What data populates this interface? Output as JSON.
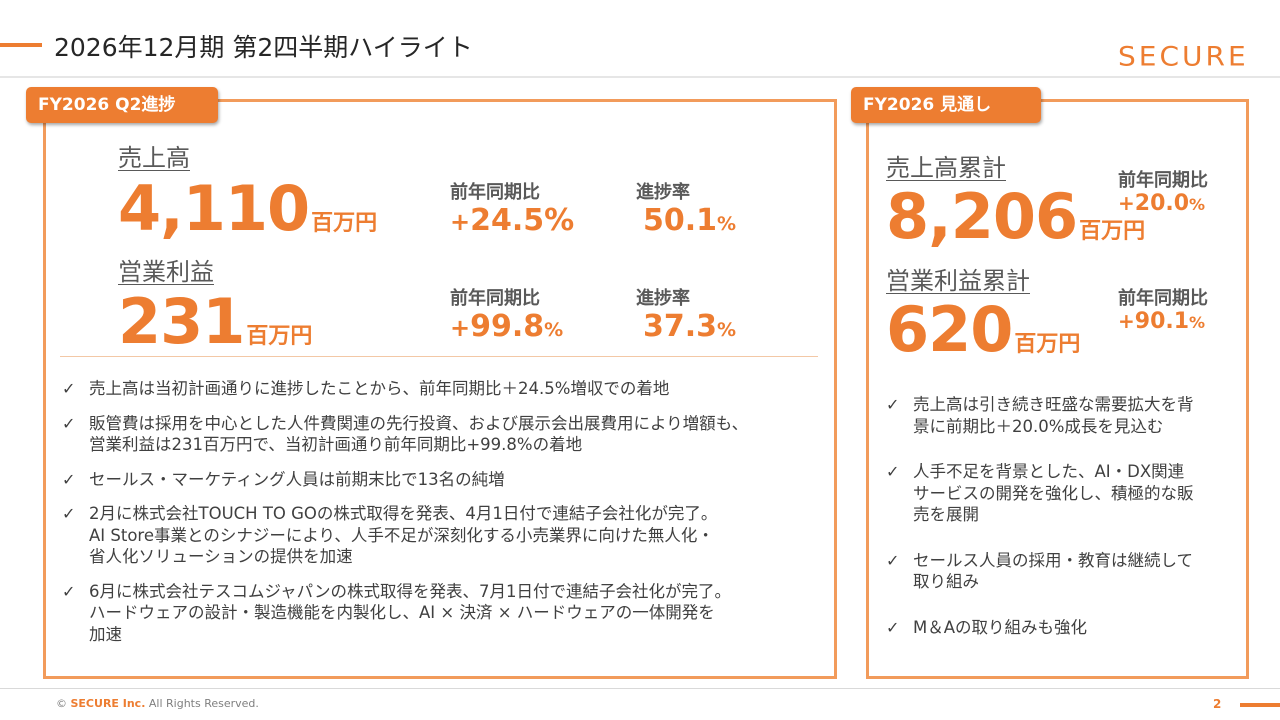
{
  "header": {
    "title": "2026年12月期 第2四半期ハイライト",
    "logo": "SECURE"
  },
  "left_panel": {
    "tab_label": "FY2026 Q2進捗",
    "sales": {
      "label": "売上高",
      "value": "4,110",
      "unit": "百万円",
      "yoy_label": "前年同期比",
      "yoy_sign": "+",
      "yoy_value": "24.5",
      "yoy_pct": "%",
      "progress_label": "進捗率",
      "progress_value": "50.1",
      "progress_pct": "%"
    },
    "op_profit": {
      "label": "営業利益",
      "value": "231",
      "unit": "百万円",
      "yoy_label": "前年同期比",
      "yoy_sign": "+",
      "yoy_value": "99.8",
      "yoy_pct": "%",
      "progress_label": "進捗率",
      "progress_value": "37.3",
      "progress_pct": "%"
    },
    "bullets": [
      [
        "売上高は当初計画通りに進捗したことから、前年同期比＋24.5%増収での着地"
      ],
      [
        "販管費は採用を中心とした人件費関連の先行投資、および展示会出展費用により増額も、",
        "営業利益は231百万円で、当初計画通り前年同期比+99.8%の着地"
      ],
      [
        "セールス・マーケティング人員は前期末比で13名の純増"
      ],
      [
        "2月に株式会社TOUCH TO GOの株式取得を発表、4月1日付で連結子会社化が完了。",
        "AI Store事業とのシナジーにより、人手不足が深刻化する小売業界に向けた無人化・",
        "省人化ソリューションの提供を加速"
      ],
      [
        "6月に株式会社テスコムジャパンの株式取得を発表、7月1日付で連結子会社化が完了。",
        "ハードウェアの設計・製造機能を内製化し、AI × 決済 × ハードウェアの一体開発を",
        "加速"
      ]
    ]
  },
  "right_panel": {
    "tab_label": "FY2026 見通し",
    "sales_total": {
      "label": "売上高累計",
      "value": "8,206",
      "unit": "百万円",
      "yoy_label": "前年同期比",
      "yoy_sign": "+",
      "yoy_value": "20.0",
      "yoy_pct": "%"
    },
    "op_profit_total": {
      "label": "営業利益累計",
      "value": "620",
      "unit": "百万円",
      "yoy_label": "前年同期比",
      "yoy_sign": "+",
      "yoy_value": "90.1",
      "yoy_pct": "%"
    },
    "bullets": [
      [
        "売上高は引き続き旺盛な需要拡大を背",
        "景に前期比＋20.0%成長を見込む"
      ],
      [
        "人手不足を背景とした、AI・DX関連",
        "サービスの開発を強化し、積極的な販",
        "売を展開"
      ],
      [
        "セールス人員の採用・教育は継続して",
        "取り組み"
      ],
      [
        "M＆Aの取り組みも強化"
      ]
    ]
  },
  "footer": {
    "copyright_symbol": "©",
    "company": "SECURE Inc.",
    "rights": "All Rights Reserved.",
    "page_number": "2"
  },
  "icons": {
    "check": "✓"
  },
  "colors": {
    "accent": "#ED7D31",
    "panel_border": "#F29B5B"
  }
}
